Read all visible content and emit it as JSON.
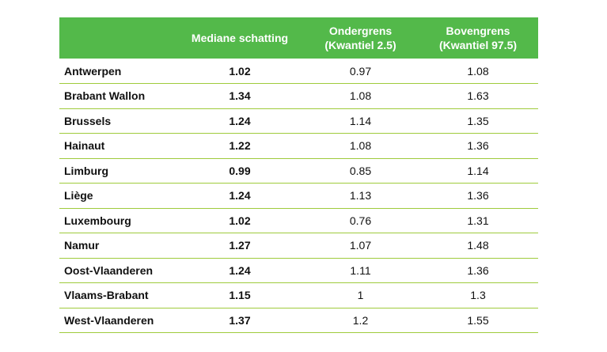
{
  "table": {
    "headers": {
      "region": "",
      "median": "Mediane schatting",
      "lower_line1": "Ondergrens",
      "lower_line2": "(Kwantiel 2.5)",
      "upper_line1": "Bovengrens",
      "upper_line2": "(Kwantiel 97.5)"
    },
    "rows": [
      {
        "region": "Antwerpen",
        "median": "1.02",
        "lower": "0.97",
        "upper": "1.08"
      },
      {
        "region": "Brabant Wallon",
        "median": "1.34",
        "lower": "1.08",
        "upper": "1.63"
      },
      {
        "region": "Brussels",
        "median": "1.24",
        "lower": "1.14",
        "upper": "1.35"
      },
      {
        "region": "Hainaut",
        "median": "1.22",
        "lower": "1.08",
        "upper": "1.36"
      },
      {
        "region": "Limburg",
        "median": "0.99",
        "lower": "0.85",
        "upper": "1.14"
      },
      {
        "region": "Liège",
        "median": "1.24",
        "lower": "1.13",
        "upper": "1.36"
      },
      {
        "region": "Luxembourg",
        "median": "1.02",
        "lower": "0.76",
        "upper": "1.31"
      },
      {
        "region": "Namur",
        "median": "1.27",
        "lower": "1.07",
        "upper": "1.48"
      },
      {
        "region": "Oost-Vlaanderen",
        "median": "1.24",
        "lower": "1.11",
        "upper": "1.36"
      },
      {
        "region": "Vlaams-Brabant",
        "median": "1.15",
        "lower": "1",
        "upper": "1.3"
      },
      {
        "region": "West-Vlaanderen",
        "median": "1.37",
        "lower": "1.2",
        "upper": "1.55"
      }
    ]
  },
  "colors": {
    "header_background": "#53b94a",
    "row_divider": "#9fcb3c",
    "header_text": "#ffffff"
  }
}
